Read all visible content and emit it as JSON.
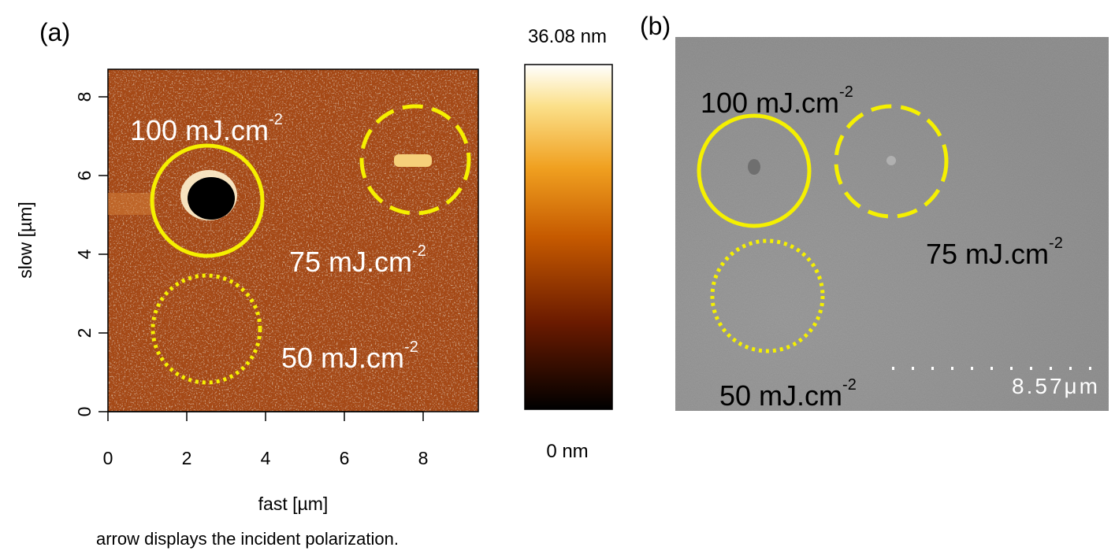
{
  "panel_a": {
    "label": "(a)",
    "x_axis": {
      "title": "fast [µm]",
      "lim": [
        0,
        9.4
      ],
      "ticks": [
        0,
        2,
        4,
        6,
        8
      ]
    },
    "y_axis": {
      "title": "slow [µm]",
      "lim": [
        0,
        8.7
      ],
      "ticks": [
        0,
        2,
        4,
        6,
        8
      ]
    },
    "colorbar": {
      "max_label": "36.08 nm",
      "min_label": "0 nm"
    },
    "annotations": [
      {
        "text": "100 mJ.cm",
        "sup": "-2"
      },
      {
        "text": "75 mJ.cm",
        "sup": "-2"
      },
      {
        "text": "50 mJ.cm",
        "sup": "-2"
      }
    ]
  },
  "panel_b": {
    "label": "(b)",
    "annotations": [
      {
        "text": "100 mJ.cm",
        "sup": "-2"
      },
      {
        "text": "75 mJ.cm",
        "sup": "-2"
      },
      {
        "text": "50 mJ.cm",
        "sup": "-2"
      }
    ],
    "scale_bar": "8.57μm"
  },
  "caption": "arrow displays the incident polarization."
}
